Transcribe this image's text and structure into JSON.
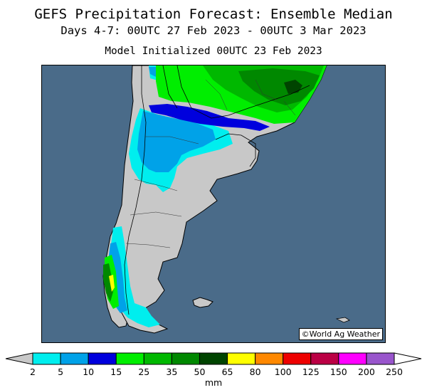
{
  "header": {
    "title": "GEFS Precipitation Forecast: Ensemble Median",
    "period": "Days 4-7: 00UTC 27 Feb 2023 - 00UTC 3 Mar 2023",
    "init": "Model Initialized 00UTC 23 Feb 2023"
  },
  "map": {
    "credit": "©World Ag Weather",
    "ocean_color": "#4a6b89",
    "land_color": "#c8c8c8"
  },
  "legend": {
    "unit": "mm",
    "ticks": [
      "2",
      "5",
      "10",
      "15",
      "25",
      "35",
      "50",
      "65",
      "80",
      "100",
      "125",
      "150",
      "200",
      "250"
    ],
    "colors": [
      "#00eeee",
      "#00a2e8",
      "#0000dd",
      "#00ee00",
      "#00b800",
      "#008800",
      "#004400",
      "#ffff00",
      "#ff8800",
      "#ee0000",
      "#bb0044",
      "#ff00ff",
      "#9955cc"
    ],
    "low_arrow_color": "#c8c8c8",
    "high_arrow_color": "#ffffff"
  }
}
